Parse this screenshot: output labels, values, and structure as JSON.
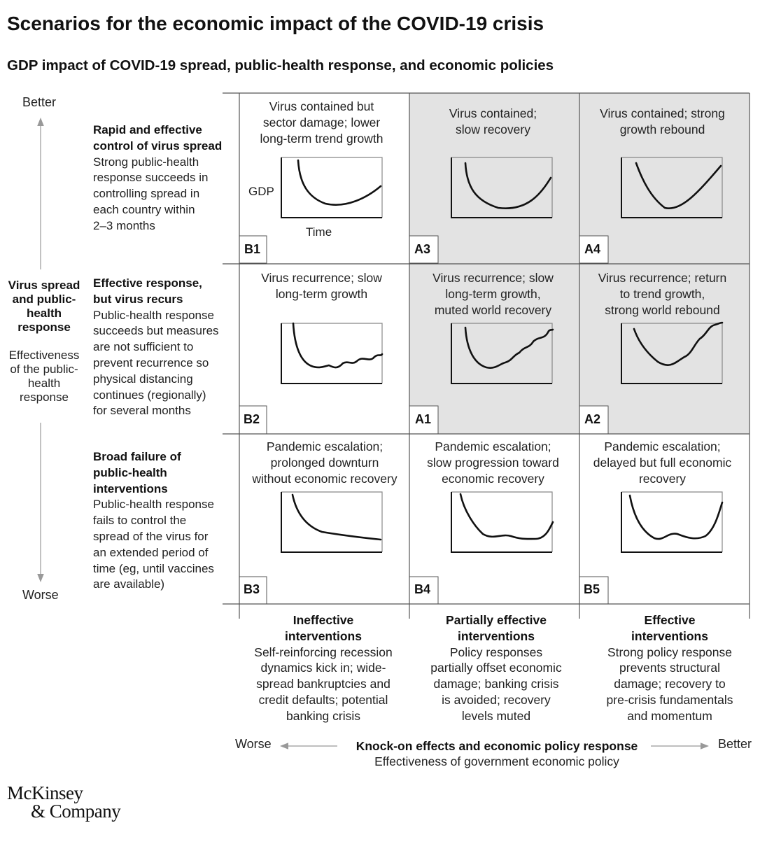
{
  "title": "Scenarios for the economic impact of the COVID-19 crisis",
  "subtitle": "GDP impact of COVID-19 spread, public-health response, and economic policies",
  "y_axis": {
    "better": "Better",
    "worse": "Worse",
    "title_lines": [
      "Virus spread",
      "and public-",
      "health",
      "response"
    ],
    "sub_lines": [
      "Effectiveness",
      "of the public-",
      "health",
      "response"
    ]
  },
  "rows": [
    {
      "title_lines": [
        "Rapid and effective",
        "control of virus spread"
      ],
      "desc_lines": [
        "Strong public-health",
        "response succeeds in",
        "controlling spread in",
        "each country within",
        "2–3 months"
      ]
    },
    {
      "title_lines": [
        "Effective response,",
        "but virus recurs"
      ],
      "desc_lines": [
        "Public-health response",
        "succeeds but measures",
        "are not sufficient to",
        "prevent recurrence so",
        "physical distancing",
        "continues (regionally)",
        "for several months"
      ]
    },
    {
      "title_lines": [
        "Broad failure of",
        "public-health",
        "interventions"
      ],
      "desc_lines": [
        "Public-health response",
        "fails to control the",
        "spread of the virus for",
        "an extended period of",
        "time (eg, until vaccines",
        "are available)"
      ]
    }
  ],
  "cells": [
    {
      "code": "B1",
      "caption_lines": [
        "Virus contained but",
        "sector damage; lower",
        "long-term trend growth"
      ],
      "shaded": false
    },
    {
      "code": "A3",
      "caption_lines": [
        "Virus contained;",
        "slow recovery"
      ],
      "shaded": true
    },
    {
      "code": "A4",
      "caption_lines": [
        "Virus contained; strong",
        "growth rebound"
      ],
      "shaded": true
    },
    {
      "code": "B2",
      "caption_lines": [
        "Virus recurrence; slow",
        "long-term growth"
      ],
      "shaded": false
    },
    {
      "code": "A1",
      "caption_lines": [
        "Virus recurrence; slow",
        "long-term growth,",
        "muted world recovery"
      ],
      "shaded": true
    },
    {
      "code": "A2",
      "caption_lines": [
        "Virus recurrence; return",
        "to trend growth,",
        "strong world rebound"
      ],
      "shaded": true
    },
    {
      "code": "B3",
      "caption_lines": [
        "Pandemic escalation;",
        "prolonged downturn",
        "without economic recovery"
      ],
      "shaded": false
    },
    {
      "code": "B4",
      "caption_lines": [
        "Pandemic escalation;",
        "slow progression toward",
        "economic recovery"
      ],
      "shaded": false
    },
    {
      "code": "B5",
      "caption_lines": [
        "Pandemic escalation;",
        "delayed but full economic",
        "recovery"
      ],
      "shaded": false
    }
  ],
  "mini_chart_axes": {
    "y": "GDP",
    "x": "Time"
  },
  "columns": [
    {
      "title_lines": [
        "Ineffective",
        "interventions"
      ],
      "desc_lines": [
        "Self-reinforcing recession",
        "dynamics kick in; wide-",
        "spread bankruptcies and",
        "credit defaults; potential",
        "banking crisis"
      ]
    },
    {
      "title_lines": [
        "Partially effective",
        "interventions"
      ],
      "desc_lines": [
        "Policy responses",
        "partially offset economic",
        "damage; banking crisis",
        "is avoided; recovery",
        "levels muted"
      ]
    },
    {
      "title_lines": [
        "Effective",
        "interventions"
      ],
      "desc_lines": [
        "Strong policy response",
        "prevents structural",
        "damage; recovery to",
        "pre-crisis fundamentals",
        "and momentum"
      ]
    }
  ],
  "x_axis": {
    "worse": "Worse",
    "better": "Better",
    "title": "Knock-on effects and economic policy response",
    "sub": "Effectiveness of government economic policy"
  },
  "logo": {
    "line1": "McKinsey",
    "line2": "& Company"
  },
  "colors": {
    "shade": "#e3e3e3",
    "grid_line": "#555555",
    "arrow": "#999999",
    "curve": "#111111",
    "mini_frame": "#888888"
  }
}
